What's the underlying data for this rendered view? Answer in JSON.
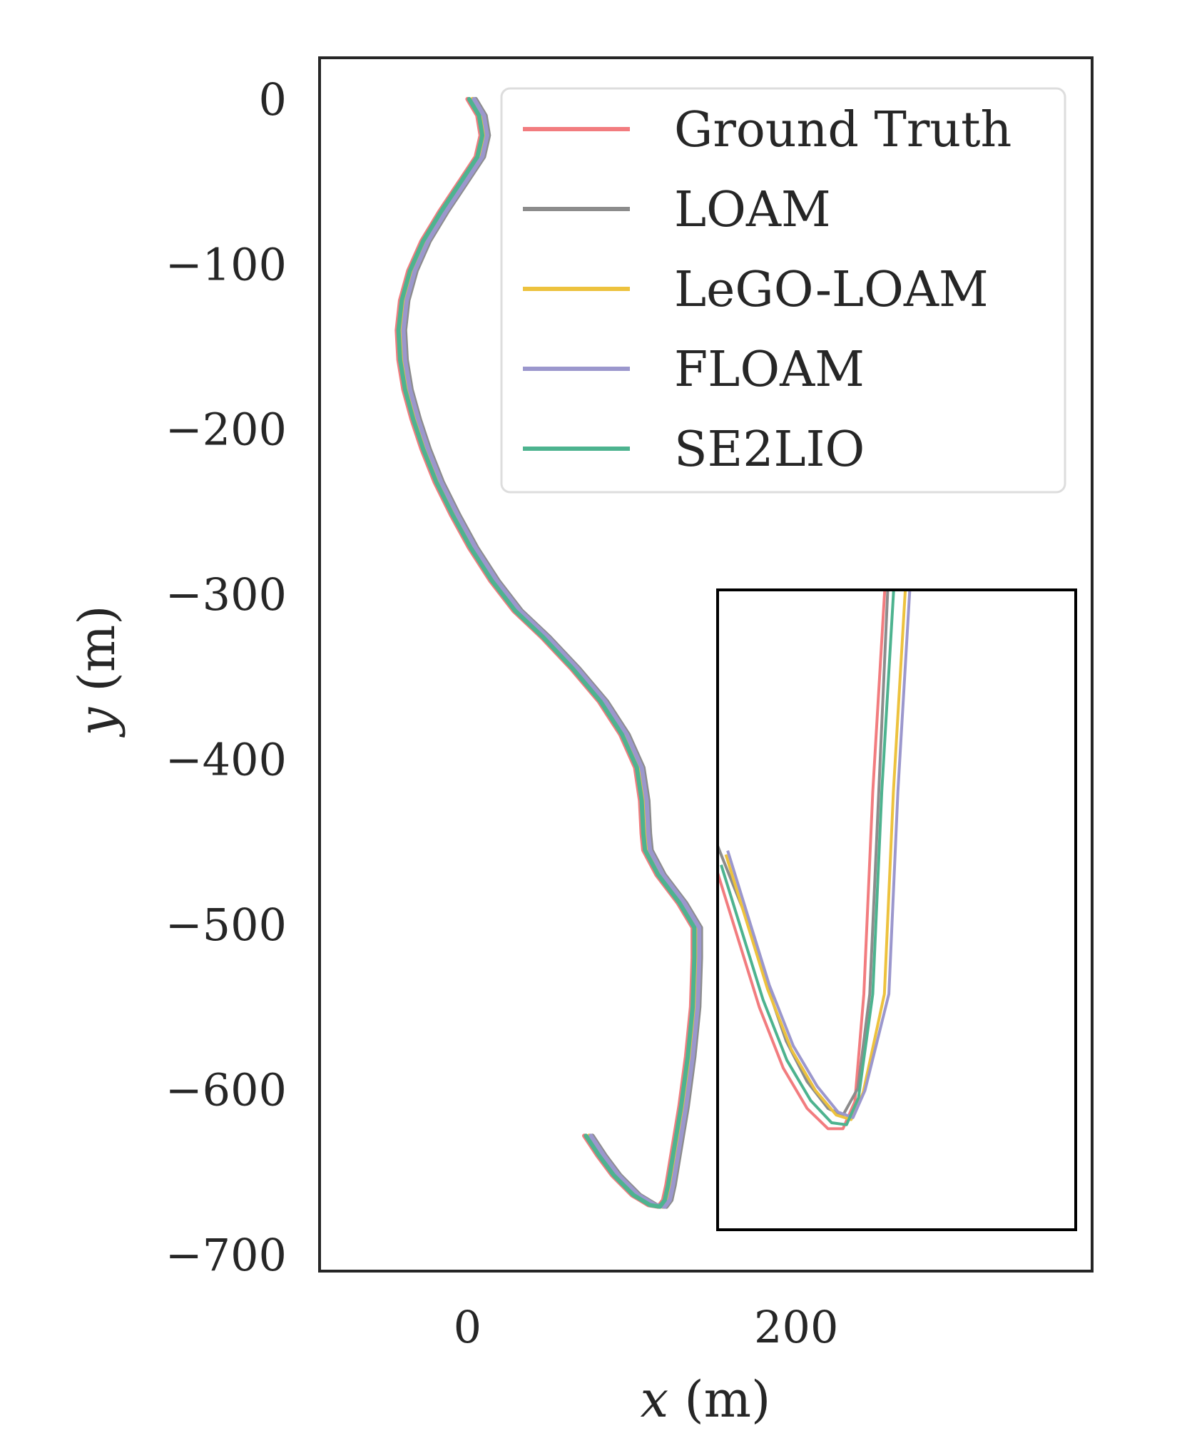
{
  "chart_data": {
    "type": "line",
    "xlabel": "x (m)",
    "ylabel": "y (m)",
    "xlim": [
      -90,
      380
    ],
    "ylim": [
      -710,
      25
    ],
    "xticks": [
      0,
      200
    ],
    "yticks": [
      0,
      -100,
      -200,
      -300,
      -400,
      -500,
      -600,
      -700
    ],
    "x_tick_labels": [
      "0",
      "200"
    ],
    "y_tick_labels": [
      "0",
      "−100",
      "−200",
      "−300",
      "−400",
      "−500",
      "−600",
      "−700"
    ],
    "grid": false,
    "legend_placement": "upper-right",
    "series": [
      {
        "name": "Ground Truth",
        "color": "#f27c7f",
        "dx": 0,
        "inset_offset": 0
      },
      {
        "name": "LOAM",
        "color": "#8c8c8c",
        "dx": 5,
        "inset_offset": 3.4
      },
      {
        "name": "LeGO-LOAM",
        "color": "#edc23e",
        "dx": 3,
        "inset_offset": 2.3
      },
      {
        "name": "FLOAM",
        "color": "#9b97cd",
        "dx": 4,
        "inset_offset": 2.8
      },
      {
        "name": "SE2LIO",
        "color": "#4db38f",
        "dx": 1,
        "inset_offset": 1.0
      }
    ],
    "trajectory": {
      "x": [
        0,
        6,
        8,
        5,
        -5,
        -17,
        -28,
        -36,
        -41,
        -43,
        -42,
        -39,
        -34,
        -28,
        -20,
        -10,
        1,
        14,
        28,
        45,
        63,
        80,
        93,
        102,
        105,
        106,
        107,
        115,
        128,
        137,
        137,
        136,
        133,
        129,
        124,
        121,
        119,
        116,
        110,
        100,
        88,
        79,
        71
      ],
      "y": [
        0,
        -10,
        -22,
        -35,
        -50,
        -68,
        -86,
        -104,
        -122,
        -140,
        -158,
        -176,
        -194,
        -212,
        -232,
        -252,
        -272,
        -292,
        -310,
        -326,
        -345,
        -365,
        -385,
        -405,
        -425,
        -445,
        -455,
        -470,
        -487,
        -502,
        -520,
        -550,
        -580,
        -610,
        -640,
        -658,
        -667,
        -671,
        -670,
        -664,
        -652,
        -640,
        -628
      ]
    },
    "inset": {
      "x_range": [
        70,
        190
      ],
      "y_range": [
        -685,
        -590
      ],
      "paths": {
        "Ground Truth": {
          "x": [
            70,
            77,
            84,
            92,
            100,
            107,
            112,
            116,
            119,
            122,
            126,
            130
          ],
          "y": [
            -632,
            -642,
            -652,
            -661,
            -667,
            -670,
            -670,
            -666,
            -650,
            -620,
            -590,
            -545
          ]
        },
        "LOAM": {
          "x": [
            70,
            79,
            86,
            93,
            100,
            107,
            112,
            117,
            121,
            124,
            127,
            130
          ],
          "y": [
            -628,
            -638,
            -648,
            -657,
            -663,
            -667,
            -668,
            -664,
            -650,
            -620,
            -590,
            -545
          ]
        }
      }
    }
  }
}
